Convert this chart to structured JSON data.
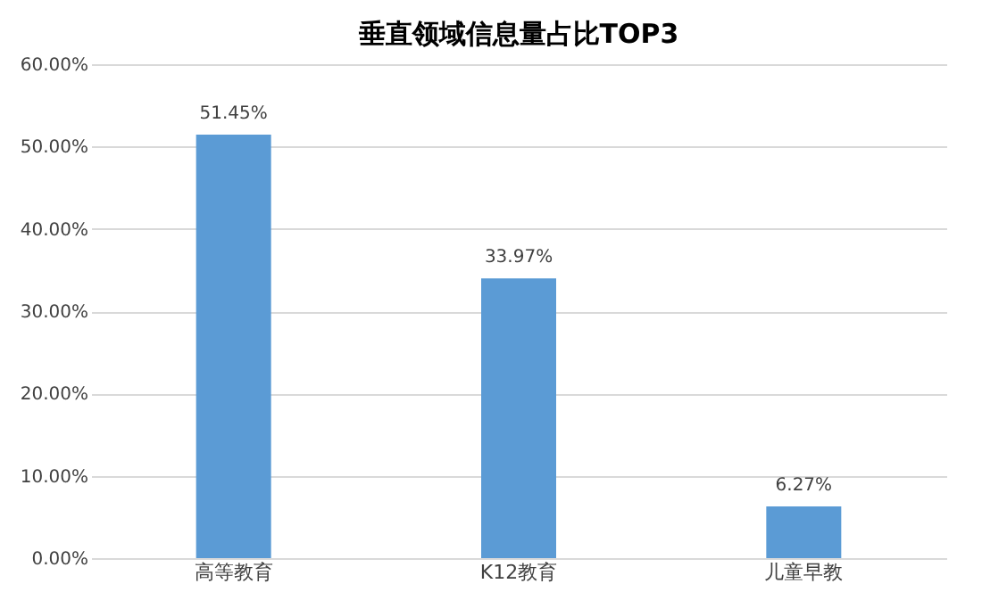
{
  "chart_data": {
    "type": "bar",
    "title": "垂直领域信息量占比TOP3",
    "categories": [
      "高等教育",
      "K12教育",
      "儿童早教"
    ],
    "values": [
      51.45,
      33.97,
      6.27
    ],
    "value_labels": [
      "51.45%",
      "33.97%",
      "6.27%"
    ],
    "color": "#5b9bd5",
    "ylim": [
      0,
      60
    ],
    "yticks": [
      {
        "value": 0,
        "label": "0.00%"
      },
      {
        "value": 10,
        "label": "10.00%"
      },
      {
        "value": 20,
        "label": "20.00%"
      },
      {
        "value": 30,
        "label": "30.00%"
      },
      {
        "value": 40,
        "label": "40.00%"
      },
      {
        "value": 50,
        "label": "50.00%"
      },
      {
        "value": 60,
        "label": "60.00%"
      }
    ],
    "grid": "y"
  }
}
